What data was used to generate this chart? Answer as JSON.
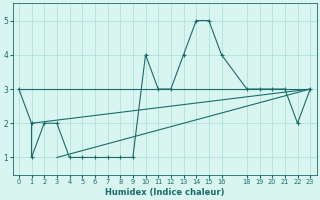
{
  "xlabel": "Humidex (Indice chaleur)",
  "bg_color": "#d9f5f0",
  "line_color": "#1a6b6b",
  "grid_color": "#a8ddd8",
  "xlim": [
    -0.5,
    23.5
  ],
  "ylim": [
    0.5,
    5.5
  ],
  "yticks": [
    1,
    2,
    3,
    4,
    5
  ],
  "xticks": [
    0,
    1,
    2,
    3,
    4,
    5,
    6,
    7,
    8,
    9,
    10,
    11,
    12,
    13,
    14,
    15,
    16,
    18,
    19,
    20,
    21,
    22,
    23
  ],
  "line1_x": [
    0,
    1,
    1,
    2,
    3,
    4,
    5,
    6,
    7,
    8,
    9,
    10,
    11,
    12,
    13,
    14,
    15,
    16,
    18,
    19,
    20,
    21,
    22,
    23
  ],
  "line1_y": [
    3,
    2,
    1,
    2,
    2,
    1,
    1,
    1,
    1,
    1,
    1,
    4,
    3,
    3,
    4,
    5,
    5,
    4,
    3,
    3,
    3,
    3,
    2,
    3
  ],
  "line2_x": [
    0,
    23
  ],
  "line2_y": [
    3,
    3
  ],
  "line3_x": [
    3,
    23
  ],
  "line3_y": [
    1,
    3
  ],
  "line4_x": [
    1,
    23
  ],
  "line4_y": [
    2,
    3
  ]
}
